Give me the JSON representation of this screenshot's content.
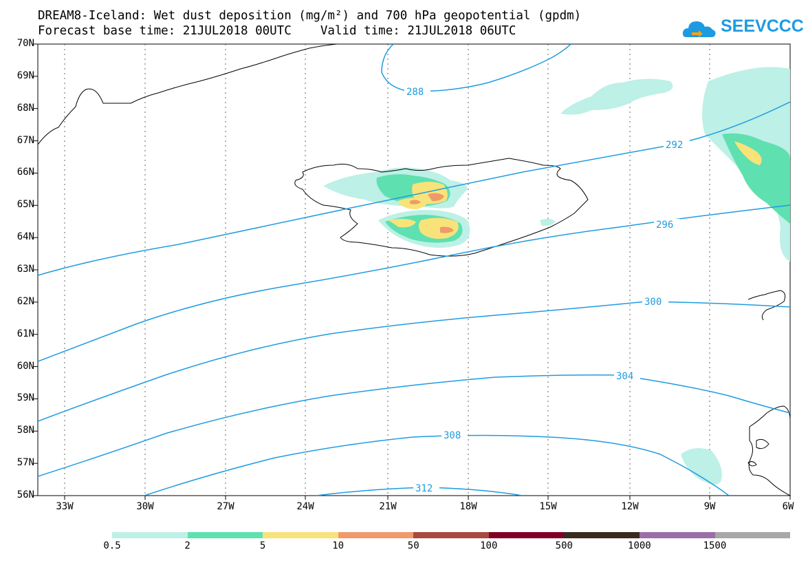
{
  "title_line1": "DREAM8-Iceland: Wet dust deposition (mg/m²) and 700 hPa geopotential (gpdm)",
  "title_line2": "Forecast base time: 21JUL2018 00UTC    Valid time: 21JUL2018 06UTC",
  "logo_text": "SEEVCCC",
  "lat_labels": [
    "70N",
    "69N",
    "68N",
    "67N",
    "66N",
    "65N",
    "64N",
    "63N",
    "62N",
    "61N",
    "60N",
    "59N",
    "58N",
    "57N",
    "56N"
  ],
  "lon_labels": [
    "33W",
    "30W",
    "27W",
    "24W",
    "21W",
    "18W",
    "15W",
    "12W",
    "9W",
    "6W"
  ],
  "contour_labels": [
    "288",
    "292",
    "296",
    "300",
    "304",
    "308",
    "312"
  ],
  "legend": {
    "labels": [
      "0.5",
      "2",
      "5",
      "10",
      "50",
      "100",
      "500",
      "1000",
      "1500"
    ],
    "colors": [
      "#bdf0e6",
      "#5fe0b0",
      "#f7e37a",
      "#ef9a6a",
      "#a94a3f",
      "#820028",
      "#3b2a1e",
      "#9a6fa8",
      "#a8a8a8"
    ]
  },
  "colors": {
    "contour": "#1e9be0",
    "coast": "#000000"
  }
}
